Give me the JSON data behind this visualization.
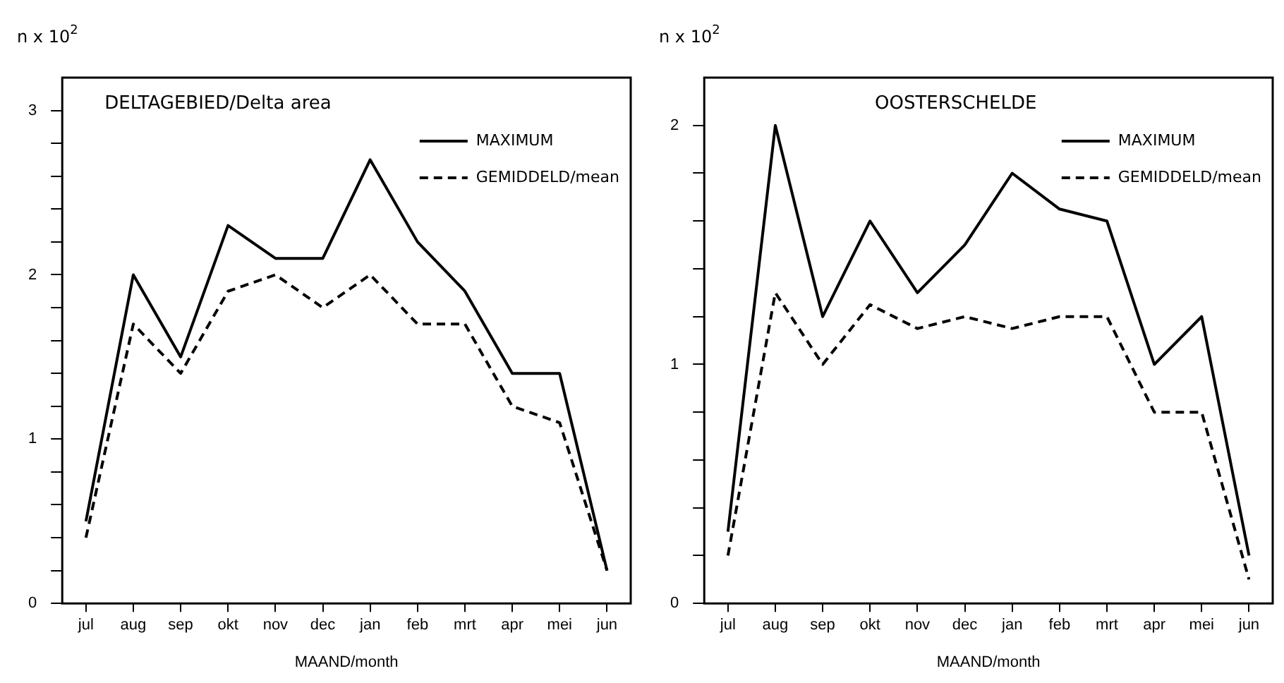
{
  "chart_data": [
    {
      "type": "line",
      "title": "DELTAGEBIED/Delta area",
      "xlabel": "MAAND/month",
      "ylabel": "n x 10$^{2}$",
      "categories": [
        "jul",
        "aug",
        "sep",
        "okt",
        "nov",
        "dec",
        "jan",
        "feb",
        "mrt",
        "apr",
        "mei",
        "jun"
      ],
      "series": [
        {
          "name": "MAXIMUM",
          "color": "#000000",
          "line_style": "solid",
          "values": [
            0.5,
            2.0,
            1.5,
            2.3,
            2.1,
            2.1,
            2.7,
            2.2,
            1.9,
            1.4,
            1.4,
            0.2
          ]
        },
        {
          "name": "GEMIDDELD/mean",
          "color": "#000000",
          "line_style": "dashed",
          "values": [
            0.4,
            1.7,
            1.4,
            1.9,
            2.0,
            1.8,
            2.0,
            1.7,
            1.7,
            1.2,
            1.1,
            0.2
          ]
        }
      ],
      "ylim": [
        0,
        3.2
      ],
      "yticks": [
        0,
        {
          "value": 0.2,
          "label": null
        },
        {
          "value": 0.4,
          "label": null
        },
        {
          "value": 0.6,
          "label": null
        },
        {
          "value": 0.8,
          "label": null
        },
        1,
        {
          "value": 1.2,
          "label": null
        },
        {
          "value": 1.4,
          "label": null
        },
        {
          "value": 1.6,
          "label": null
        },
        {
          "value": 1.8,
          "label": null
        },
        2,
        {
          "value": 2.2,
          "label": null
        },
        {
          "value": 2.4,
          "label": null
        },
        {
          "value": 2.6,
          "label": null
        },
        {
          "value": 2.8,
          "label": null
        },
        3
      ],
      "grid": false,
      "legend": "top right",
      "marker": "none"
    },
    {
      "type": "line",
      "title": "OOSTERSCHELDE",
      "xlabel": "MAAND/month",
      "ylabel": "n x 10$^{2}$",
      "categories": [
        "jul",
        "aug",
        "sep",
        "okt",
        "nov",
        "dec",
        "jan",
        "feb",
        "mrt",
        "apr",
        "mei",
        "jun"
      ],
      "series": [
        {
          "name": "MAXIMUM",
          "color": "#000000",
          "line_style": "solid",
          "values": [
            0.3,
            2.0,
            1.2,
            1.6,
            1.3,
            1.5,
            1.8,
            1.65,
            1.6,
            1.0,
            1.2,
            0.2
          ]
        },
        {
          "name": "GEMIDDELD/mean",
          "color": "#000000",
          "line_style": "dashed",
          "values": [
            0.2,
            1.3,
            1.0,
            1.25,
            1.15,
            1.2,
            1.15,
            1.2,
            1.2,
            0.8,
            0.8,
            0.1
          ]
        }
      ],
      "ylim": [
        0,
        2.2
      ],
      "yticks": [
        0,
        {
          "value": 0.2,
          "label": null
        },
        {
          "value": 0.4,
          "label": null
        },
        {
          "value": 0.6,
          "label": null
        },
        {
          "value": 0.8,
          "label": null
        },
        1,
        {
          "value": 1.2,
          "label": null
        },
        {
          "value": 1.4,
          "label": null
        },
        {
          "value": 1.6,
          "label": null
        },
        {
          "value": 1.8,
          "label": null
        },
        2
      ],
      "grid": false,
      "legend": "top right",
      "marker": "none"
    }
  ]
}
